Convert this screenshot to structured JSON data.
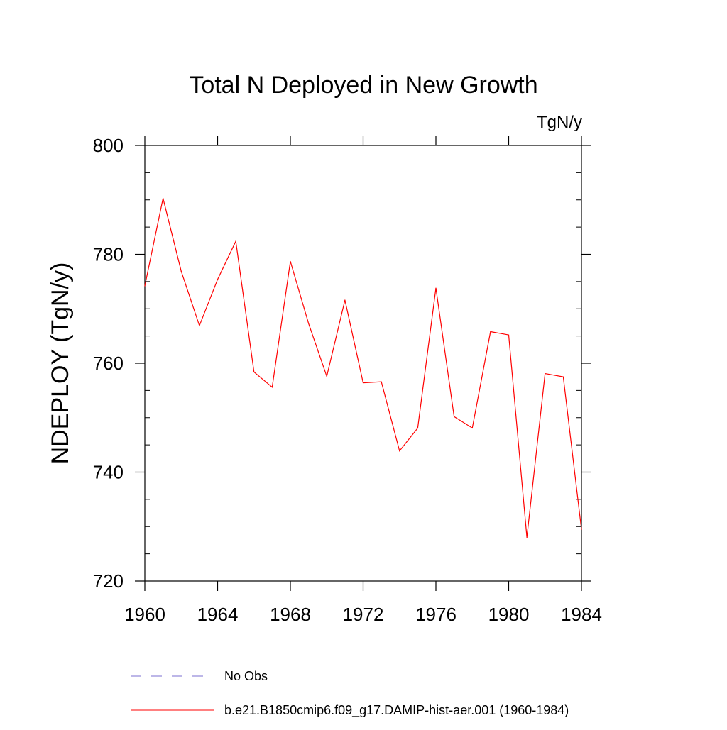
{
  "chart_data": {
    "type": "line",
    "title": "Total N Deployed in New Growth",
    "units_label": "TgN/y",
    "xlabel": "",
    "ylabel": "NDEPLOY  (TgN/y)",
    "xlim": [
      1960,
      1984
    ],
    "ylim": [
      720,
      800
    ],
    "x_ticks": [
      1960,
      1964,
      1968,
      1972,
      1976,
      1980,
      1984
    ],
    "y_ticks": [
      720,
      740,
      760,
      780,
      800
    ],
    "x": [
      1960,
      1961,
      1962,
      1963,
      1964,
      1965,
      1966,
      1967,
      1968,
      1969,
      1970,
      1971,
      1972,
      1973,
      1974,
      1975,
      1976,
      1977,
      1978,
      1979,
      1980,
      1981,
      1982,
      1983,
      1984
    ],
    "series": [
      {
        "name": "b.e21.B1850cmip6.f09_g17.DAMIP-hist-aer.001 (1960-1984)",
        "color": "#ff0000",
        "values": [
          774.2,
          790.3,
          776.9,
          766.9,
          775.4,
          782.4,
          758.4,
          755.6,
          778.7,
          767.3,
          757.6,
          771.6,
          756.4,
          756.6,
          743.9,
          748.1,
          773.8,
          750.2,
          748.1,
          765.8,
          765.2,
          728.0,
          758.1,
          757.5,
          729.5
        ]
      }
    ],
    "legend": {
      "placement": "bottom",
      "entries": [
        {
          "label": "No Obs",
          "color": "#7b6fd0",
          "style": "dashed"
        },
        {
          "label": "b.e21.B1850cmip6.f09_g17.DAMIP-hist-aer.001 (1960-1984)",
          "color": "#ff0000",
          "style": "solid"
        }
      ]
    },
    "grid": false
  }
}
